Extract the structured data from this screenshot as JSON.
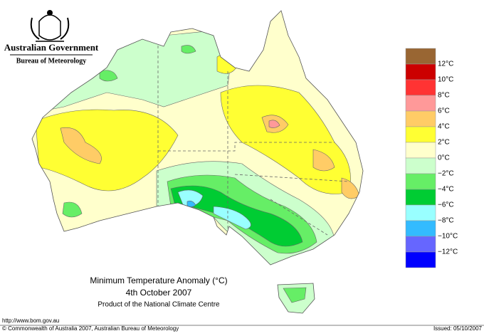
{
  "header": {
    "government": "Australian Government",
    "bureau": "Bureau of Meteorology"
  },
  "title": "Minimum Temperature Anomaly (°C)",
  "date": "4th October 2007",
  "subtitle": "Product of the National Climate Centre",
  "url": "http://www.bom.gov.au",
  "copyright": "© Commonwealth of Australia 2007, Australian Bureau of Meteorology",
  "issued": "Issued: 05/10/2007",
  "legend": {
    "colors": [
      "#996633",
      "#cc0000",
      "#ff3333",
      "#ff9999",
      "#ffcc66",
      "#ffff33",
      "#ffffcc",
      "#ccffcc",
      "#66ee66",
      "#00cc33",
      "#99ffff",
      "#33bbff",
      "#6666ff",
      "#0000ff"
    ],
    "labels": [
      "12°C",
      "10°C",
      "8°C",
      "6°C",
      "4°C",
      "2°C",
      "0°C",
      "−2°C",
      "−4°C",
      "−6°C",
      "−8°C",
      "−10°C",
      "−12°C"
    ]
  }
}
